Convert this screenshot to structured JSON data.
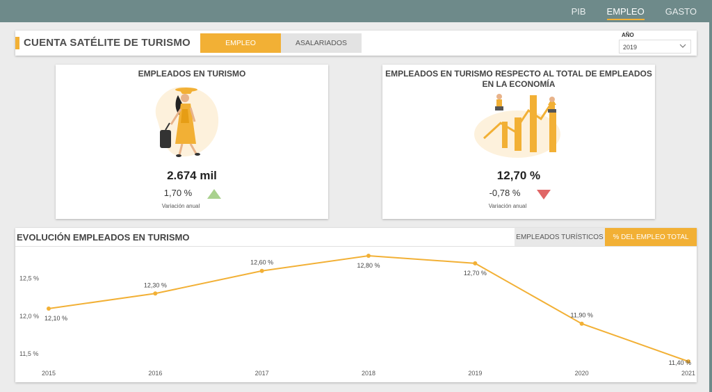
{
  "nav": {
    "items": [
      "PIB",
      "EMPLEO",
      "GASTO"
    ],
    "active": "EMPLEO"
  },
  "header": {
    "title": "CUENTA SATÉLITE DE TURISMO",
    "tabs": [
      "EMPLEO",
      "ASALARIADOS"
    ],
    "active_tab": "EMPLEO",
    "year_label": "AÑO",
    "year_value": "2019"
  },
  "card1": {
    "title": "EMPLEADOS EN TURISMO",
    "value": "2.674 mil",
    "change": "1,70 %",
    "change_label": "Variación anual",
    "trend": "up"
  },
  "card2": {
    "title_line1": "EMPLEADOS EN TURISMO RESPECTO AL TOTAL DE EMPLEADOS",
    "title_line2": "EN LA ECONOMÍA",
    "value": "12,70 %",
    "change": "-0,78 %",
    "change_label": "Variación anual",
    "trend": "down"
  },
  "evolution": {
    "title": "EVOLUCIÓN EMPLEADOS EN TURISMO",
    "tabs": [
      "EMPLEADOS TURÍSTICOS",
      "% DEL EMPLEO TOTAL"
    ],
    "active_tab": "% DEL EMPLEO TOTAL"
  },
  "colors": {
    "accent": "#f2b035",
    "topbar": "#6e8a8a",
    "up": "#a9d18e",
    "down": "#e06666"
  },
  "chart_data": {
    "type": "line",
    "x": [
      "2015",
      "2016",
      "2017",
      "2018",
      "2019",
      "2020",
      "2021"
    ],
    "series": [
      {
        "values": [
          12.1,
          12.3,
          12.6,
          12.8,
          12.7,
          11.9,
          11.4
        ],
        "labels": [
          "12,10 %",
          "12,30 %",
          "12,60 %",
          "12,80 %",
          "12,70 %",
          "11,90 %",
          "11,40 %"
        ]
      }
    ],
    "yticks": [
      11.5,
      12.0,
      12.5
    ],
    "ytick_labels": [
      "11,5 %",
      "12,0 %",
      "12,5 %"
    ],
    "ylim": [
      11.4,
      12.8
    ],
    "grid": false,
    "color": "#f2b035"
  }
}
